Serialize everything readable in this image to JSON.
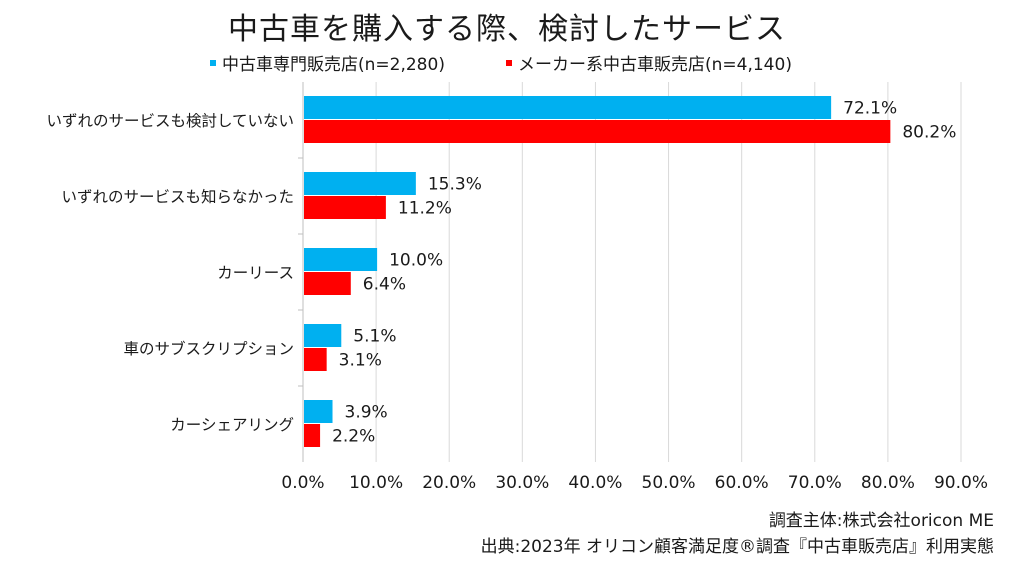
{
  "chart_data": {
    "type": "bar",
    "orientation": "horizontal",
    "title": "中古車を購入する際、検討したサービス",
    "categories": [
      "いずれのサービスも検討していない",
      "いずれのサービスも知らなかった",
      "カーリース",
      "車のサブスクリプション",
      "カーシェアリング"
    ],
    "series": [
      {
        "name": "中古車専門販売店(n=2,280)",
        "color": "#00B0F0",
        "values": [
          72.1,
          15.3,
          10.0,
          5.1,
          3.9
        ],
        "labels": [
          "72.1%",
          "15.3%",
          "10.0%",
          "5.1%",
          "3.9%"
        ]
      },
      {
        "name": "メーカー系中古車販売店(n=4,140)",
        "color": "#FF0000",
        "values": [
          80.2,
          11.2,
          6.4,
          3.1,
          2.2
        ],
        "labels": [
          "80.2%",
          "11.2%",
          "6.4%",
          "3.1%",
          "2.2%"
        ]
      }
    ],
    "xlim": [
      0,
      90
    ],
    "xticks": [
      "0.0%",
      "10.0%",
      "20.0%",
      "30.0%",
      "40.0%",
      "50.0%",
      "60.0%",
      "70.0%",
      "80.0%",
      "90.0%"
    ],
    "grid": true,
    "legend": "top"
  },
  "source": {
    "line1": "調査主体:株式会社oricon ME",
    "line2": "出典:2023年 オリコン顧客満足度®調査『中古車販売店』利用実態"
  }
}
